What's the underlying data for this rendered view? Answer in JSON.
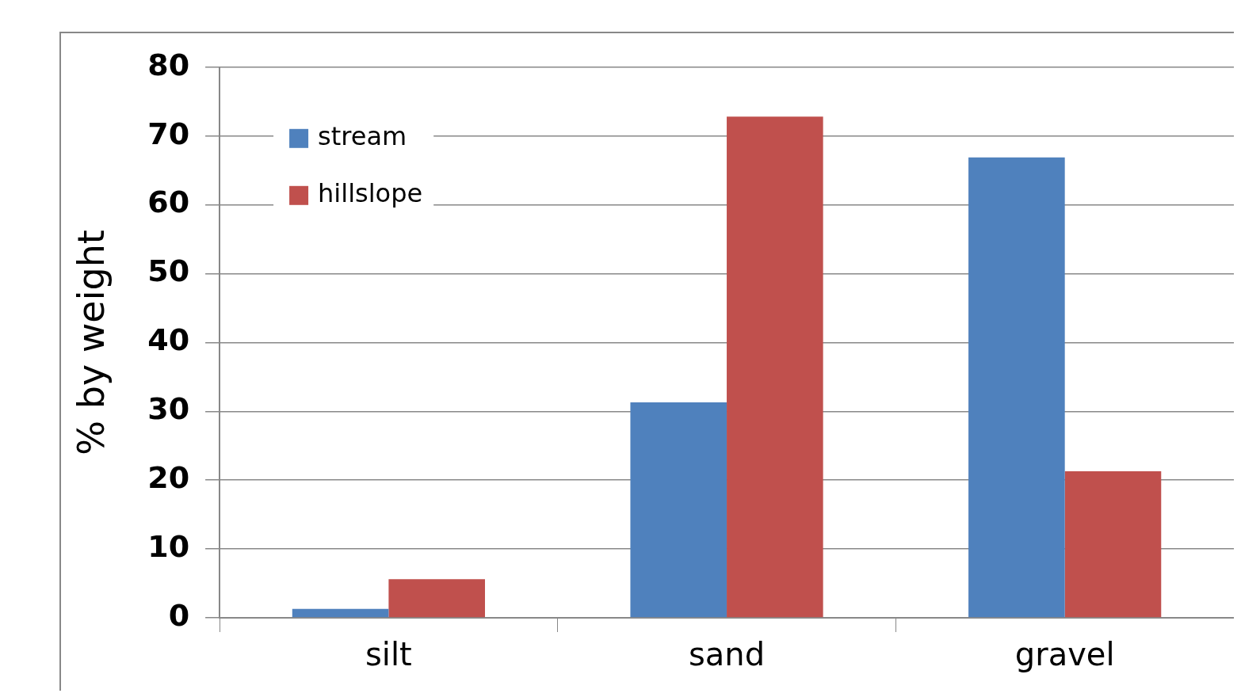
{
  "chart_data": {
    "type": "bar",
    "ylabel": "% by weight",
    "categories": [
      "silt",
      "sand",
      "gravel"
    ],
    "series": [
      {
        "name": "stream",
        "color": "#4f81bd",
        "values": [
          1.3,
          31.3,
          66.9
        ]
      },
      {
        "name": "hillslope",
        "color": "#c0504d",
        "values": [
          5.6,
          72.8,
          21.3
        ]
      }
    ],
    "ylim": [
      0,
      80
    ],
    "yticks": [
      0,
      10,
      20,
      30,
      40,
      50,
      60,
      70,
      80
    ],
    "grid": "y",
    "legend": "top left"
  }
}
